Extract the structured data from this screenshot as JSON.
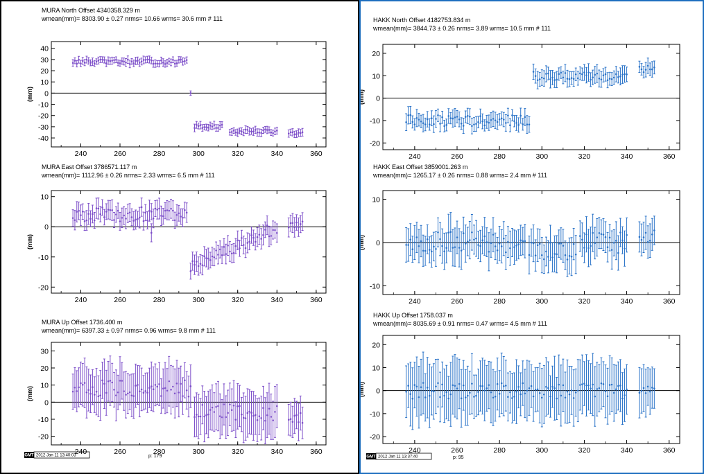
{
  "panels": [
    {
      "id": "left",
      "color": "#7d4fc9",
      "zero_line_color": "#000000",
      "footer": {
        "logo": "GMT",
        "timestamp": "2012 Jan 11 13:40:03",
        "page": "p: 179"
      },
      "charts": [
        {
          "station": "MURA",
          "component": "North",
          "offset": "4340358.329 m",
          "wmean": "8303.90",
          "wmean_err": "0.27",
          "nrms": "10.66",
          "wrms": "30.6",
          "count": "111"
        },
        {
          "station": "MURA",
          "component": "East",
          "offset": "3786571.117 m",
          "wmean": "1112.96",
          "wmean_err": "0.26",
          "nrms": "2.33",
          "wrms": "6.5",
          "count": "111"
        },
        {
          "station": "MURA",
          "component": "Up",
          "offset": "1736.400 m",
          "wmean": "6397.33",
          "wmean_err": "0.97",
          "nrms": "0.96",
          "wrms": "9.8",
          "count": "111"
        }
      ]
    },
    {
      "id": "right",
      "color": "#2a73c8",
      "zero_line_color": "#000000",
      "footer": {
        "logo": "GMT",
        "timestamp": "2012 Jan 11 13:37:40",
        "page": "p: 95"
      },
      "charts": [
        {
          "station": "HAKK",
          "component": "North",
          "offset": "4182753.834 m",
          "wmean": "3844.73",
          "wmean_err": "0.26",
          "nrms": "3.89",
          "wrms": "10.5",
          "count": "111"
        },
        {
          "station": "HAKK",
          "component": "East",
          "offset": "3859001.263 m",
          "wmean": "1265.17",
          "wmean_err": "0.26",
          "nrms": "0.88",
          "wrms": "2.4",
          "count": "111"
        },
        {
          "station": "HAKK",
          "component": "Up",
          "offset": "1758.037 m",
          "wmean": "8035.69",
          "wmean_err": "0.91",
          "nrms": "0.47",
          "wrms": "4.5",
          "count": "111"
        }
      ]
    }
  ],
  "chart_data": [
    {
      "type": "scatter",
      "title": "MURA North Offset 4340358.329 m",
      "ylabel": "(mm)",
      "xlim": [
        225,
        365
      ],
      "ylim": [
        -48,
        46
      ],
      "xticks": [
        240,
        260,
        280,
        300,
        320,
        340,
        360
      ],
      "yticks": [
        -40,
        -30,
        -20,
        -10,
        0,
        10,
        20,
        30,
        40
      ],
      "zero_line": true,
      "series": [
        {
          "x_range": [
            236,
            296
          ],
          "y_approx": 28,
          "err_approx": 3
        },
        {
          "x_range": [
            298,
            310
          ],
          "y_approx": -31,
          "err_approx": 3
        },
        {
          "x_range": [
            316,
            340
          ],
          "y_approx": -34,
          "err_approx": 3
        },
        {
          "x_range": [
            346,
            353
          ],
          "y_approx": -36,
          "err_approx": 3
        }
      ]
    },
    {
      "type": "scatter",
      "title": "MURA East Offset 3786571.117 m",
      "ylabel": "(mm)",
      "xlim": [
        225,
        365
      ],
      "ylim": [
        -22,
        12
      ],
      "xticks": [
        240,
        260,
        280,
        300,
        320,
        340,
        360
      ],
      "yticks": [
        -20,
        -10,
        0,
        10
      ],
      "zero_line": true,
      "series": [
        {
          "x_range": [
            236,
            294
          ],
          "y_approx": 5,
          "err_approx": 3
        },
        {
          "x_range": [
            296,
            340
          ],
          "y_from": -13,
          "y_to": 0,
          "err_approx": 3
        },
        {
          "x_range": [
            346,
            353
          ],
          "y_approx": 1,
          "err_approx": 3
        }
      ]
    },
    {
      "type": "scatter",
      "title": "MURA Up Offset 1736.400 m",
      "ylabel": "(mm)",
      "xlim": [
        225,
        365
      ],
      "ylim": [
        -25,
        35
      ],
      "xticks": [
        240,
        260,
        280,
        300,
        320,
        340,
        360
      ],
      "yticks": [
        -20,
        -10,
        0,
        10,
        20,
        30
      ],
      "zero_line": true,
      "series": [
        {
          "x_range": [
            236,
            296
          ],
          "y_approx": 8,
          "err_approx": 12
        },
        {
          "x_range": [
            298,
            340
          ],
          "y_approx": -6,
          "err_approx": 12
        },
        {
          "x_range": [
            346,
            353
          ],
          "y_approx": -10,
          "err_approx": 10
        }
      ]
    },
    {
      "type": "scatter",
      "title": "HAKK North Offset 4182753.834 m",
      "ylabel": "(mm)",
      "xlim": [
        225,
        365
      ],
      "ylim": [
        -23,
        24
      ],
      "xticks": [
        240,
        260,
        280,
        300,
        320,
        340,
        360
      ],
      "yticks": [
        -20,
        -10,
        0,
        10,
        20
      ],
      "zero_line": true,
      "series": [
        {
          "x_range": [
            236,
            294
          ],
          "y_approx": -10,
          "err_approx": 3
        },
        {
          "x_range": [
            296,
            340
          ],
          "y_approx": 10,
          "err_approx": 3
        },
        {
          "x_range": [
            346,
            353
          ],
          "y_approx": 13,
          "err_approx": 3
        }
      ]
    },
    {
      "type": "scatter",
      "title": "HAKK East Offset 3859001.263 m",
      "ylabel": "(mm)",
      "xlim": [
        225,
        365
      ],
      "ylim": [
        -12,
        12
      ],
      "xticks": [
        240,
        260,
        280,
        300,
        320,
        340,
        360
      ],
      "yticks": [
        -10,
        0,
        10
      ],
      "zero_line": true,
      "series": [
        {
          "x_range": [
            236,
            340
          ],
          "y_approx": 0,
          "err_approx": 3.5
        },
        {
          "x_range": [
            346,
            353
          ],
          "y_approx": 1.5,
          "err_approx": 3
        }
      ]
    },
    {
      "type": "scatter",
      "title": "HAKK Up Offset 1758.037 m",
      "ylabel": "(mm)",
      "xlim": [
        225,
        365
      ],
      "ylim": [
        -23,
        24
      ],
      "xticks": [
        240,
        260,
        280,
        300,
        320,
        340,
        360
      ],
      "yticks": [
        -20,
        -10,
        0,
        10,
        20
      ],
      "zero_line": true,
      "series": [
        {
          "x_range": [
            236,
            340
          ],
          "y_approx": 0,
          "err_approx": 11
        },
        {
          "x_range": [
            346,
            353
          ],
          "y_approx": 1,
          "err_approx": 9
        }
      ]
    }
  ]
}
